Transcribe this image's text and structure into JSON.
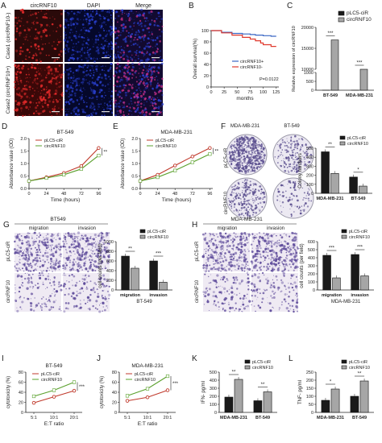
{
  "panel_labels": [
    "A",
    "B",
    "C",
    "D",
    "E",
    "F",
    "G",
    "H",
    "I",
    "J",
    "K",
    "L"
  ],
  "panel_a": {
    "columns": [
      "circRNF10",
      "DAPI",
      "Merge"
    ],
    "rows": [
      "Case1 (circRNF10-)",
      "Case2 (circRNF10+)"
    ]
  },
  "panel_f": {
    "columns": [
      "MDA-MB-231",
      "BT-549"
    ],
    "rows": [
      "pLC5-ciR",
      "circRNF10"
    ]
  },
  "panel_g": {
    "title": "BT549",
    "columns": [
      "migration",
      "invasion"
    ],
    "rows": [
      "pLC5-ciR",
      "circRNF10"
    ]
  },
  "panel_h": {
    "title": "MDA-MB-231",
    "columns": [
      "migration",
      "invasion"
    ],
    "rows": [
      "pLC5-ciR",
      "circRNF10"
    ]
  },
  "colors": {
    "ctrl": "#1a1a1a",
    "circ": "#a6a6a6",
    "line_ctrl": "#c0392b",
    "line_circ": "#5aa02c",
    "surv_pos": "#3a67c4",
    "surv_neg": "#e03a2e",
    "if_red": "#e02a2a",
    "if_blue": "#2a40d0"
  },
  "chart_data": [
    {
      "id": "B",
      "type": "line",
      "xlabel": "months",
      "ylabel": "Overall survival(%)",
      "xticks": [
        0,
        25,
        50,
        75,
        100,
        125
      ],
      "yticks": [
        0,
        20,
        40,
        60,
        80,
        100
      ],
      "xlim": [
        0,
        130
      ],
      "ylim": [
        0,
        100
      ],
      "annotation": "P=0.0122",
      "series": [
        {
          "name": "circRNF10+",
          "x": [
            0,
            20,
            40,
            60,
            75,
            85,
            100,
            115,
            125
          ],
          "y": [
            100,
            97,
            95,
            94,
            93,
            92,
            91,
            90,
            90
          ]
        },
        {
          "name": "circRNF10-",
          "x": [
            0,
            20,
            40,
            60,
            75,
            85,
            95,
            100,
            115,
            125
          ],
          "y": [
            100,
            96,
            92,
            88,
            85,
            82,
            78,
            75,
            72,
            72
          ]
        }
      ]
    },
    {
      "id": "C",
      "type": "bar",
      "categories": [
        "BT-549",
        "MDA-MB-231"
      ],
      "ylabel": "Relative expression of circRNF10",
      "yticks": [
        "0",
        "500",
        "1000",
        "10000",
        "15000",
        "20000"
      ],
      "series": [
        {
          "name": "pLC5-ciR",
          "values": [
            1,
            1
          ]
        },
        {
          "name": "circRNF10",
          "values": [
            17000,
            2000
          ]
        }
      ],
      "sig": [
        "***",
        "***"
      ]
    },
    {
      "id": "D",
      "type": "line",
      "title": "BT-549",
      "xlabel": "Time (hours)",
      "ylabel": "Absorbance value (OD)",
      "x": [
        0,
        24,
        48,
        72,
        96
      ],
      "xlim": [
        0,
        100
      ],
      "ylim": [
        0,
        2.0
      ],
      "yticks": [
        0.0,
        0.5,
        1.0,
        1.5,
        2.0
      ],
      "series": [
        {
          "name": "pLC5-ciR",
          "values": [
            0.3,
            0.45,
            0.62,
            0.9,
            1.62
          ]
        },
        {
          "name": "circRNF10",
          "values": [
            0.3,
            0.42,
            0.55,
            0.78,
            1.32
          ]
        }
      ],
      "sig": "**"
    },
    {
      "id": "E",
      "type": "line",
      "title": "MDA-MB-231",
      "xlabel": "Time (hours)",
      "ylabel": "Absorbance value (OD)",
      "x": [
        0,
        24,
        48,
        72,
        96
      ],
      "xlim": [
        0,
        100
      ],
      "ylim": [
        0,
        2.0
      ],
      "yticks": [
        0.0,
        0.5,
        1.0,
        1.5,
        2.0
      ],
      "series": [
        {
          "name": "pLC5-ciR",
          "values": [
            0.3,
            0.55,
            0.92,
            1.28,
            1.62
          ]
        },
        {
          "name": "circRNF10",
          "values": [
            0.3,
            0.45,
            0.72,
            1.05,
            1.38
          ]
        }
      ],
      "sig": "**"
    },
    {
      "id": "F",
      "type": "bar",
      "categories": [
        "MDA-MB-231",
        "BT-549"
      ],
      "ylabel": "Colony numbers",
      "ylim": [
        0,
        500
      ],
      "yticks": [
        0,
        100,
        200,
        300,
        400,
        500
      ],
      "series": [
        {
          "name": "pLC5-ciR",
          "values": [
            460,
            180
          ]
        },
        {
          "name": "circRNF10",
          "values": [
            220,
            80
          ]
        }
      ],
      "sig": [
        "**",
        "*"
      ]
    },
    {
      "id": "G",
      "type": "bar",
      "categories": [
        "migration",
        "invasion"
      ],
      "ylabel": "cell counts (per field)",
      "xlabel": "BT-549",
      "ylim": [
        0,
        1000
      ],
      "yticks": [
        0,
        200,
        400,
        600,
        800,
        1000
      ],
      "series": [
        {
          "name": "pLC5-ciR",
          "values": [
            700,
            600
          ]
        },
        {
          "name": "circRNF10",
          "values": [
            450,
            160
          ]
        }
      ],
      "sig": [
        "**",
        "***"
      ]
    },
    {
      "id": "H",
      "type": "bar",
      "categories": [
        "migration",
        "invasion"
      ],
      "ylabel": "cell counts (per field)",
      "xlabel": "MDA-MB-231",
      "ylim": [
        0,
        600
      ],
      "yticks": [
        0,
        100,
        200,
        300,
        400,
        500,
        600
      ],
      "series": [
        {
          "name": "pLC5-ciR",
          "values": [
            430,
            440
          ]
        },
        {
          "name": "circRNF10",
          "values": [
            150,
            175
          ]
        }
      ],
      "sig": [
        "***",
        "***"
      ]
    },
    {
      "id": "I",
      "type": "line",
      "title": "BT-549",
      "categories": [
        "5:1",
        "10:1",
        "20:1"
      ],
      "xlabel": "E:T ratio",
      "ylabel": "cytotoxicity (%)",
      "ylim": [
        0,
        80
      ],
      "yticks": [
        0,
        20,
        40,
        60,
        80
      ],
      "series": [
        {
          "name": "pLC5-ciR",
          "values": [
            19,
            31,
            43
          ]
        },
        {
          "name": "circRNF10",
          "values": [
            32,
            44,
            60
          ]
        }
      ],
      "sig": "***"
    },
    {
      "id": "J",
      "type": "line",
      "title": "MDA-MB-231",
      "categories": [
        "5:1",
        "10:1",
        "20:1"
      ],
      "xlabel": "E:T ratio",
      "ylabel": "cytotoxicity (%)",
      "ylim": [
        0,
        80
      ],
      "yticks": [
        0,
        20,
        40,
        60,
        80
      ],
      "series": [
        {
          "name": "pLC5-ciR",
          "values": [
            23,
            30,
            44
          ]
        },
        {
          "name": "circRNF10",
          "values": [
            33,
            47,
            72
          ]
        }
      ],
      "sig": "***"
    },
    {
      "id": "K",
      "type": "bar",
      "categories": [
        "MDA-MB-231",
        "BT-549"
      ],
      "ylabel": "IFN- pg/ml",
      "ylim": [
        0,
        500
      ],
      "yticks": [
        0,
        100,
        200,
        300,
        400,
        500
      ],
      "series": [
        {
          "name": "pLC5-ciR",
          "values": [
            190,
            145
          ]
        },
        {
          "name": "circRNF10",
          "values": [
            410,
            255
          ]
        }
      ],
      "sig": [
        "**",
        "**"
      ]
    },
    {
      "id": "L",
      "type": "bar",
      "categories": [
        "MDA-MB-231",
        "BT-549"
      ],
      "ylabel": "TNF- pg/ml",
      "ylim": [
        0,
        250
      ],
      "yticks": [
        0,
        50,
        100,
        150,
        200,
        250
      ],
      "series": [
        {
          "name": "pLC5-ciR",
          "values": [
            75,
            100
          ]
        },
        {
          "name": "circRNF10",
          "values": [
            145,
            195
          ]
        }
      ],
      "sig": [
        "*",
        "**"
      ]
    }
  ]
}
